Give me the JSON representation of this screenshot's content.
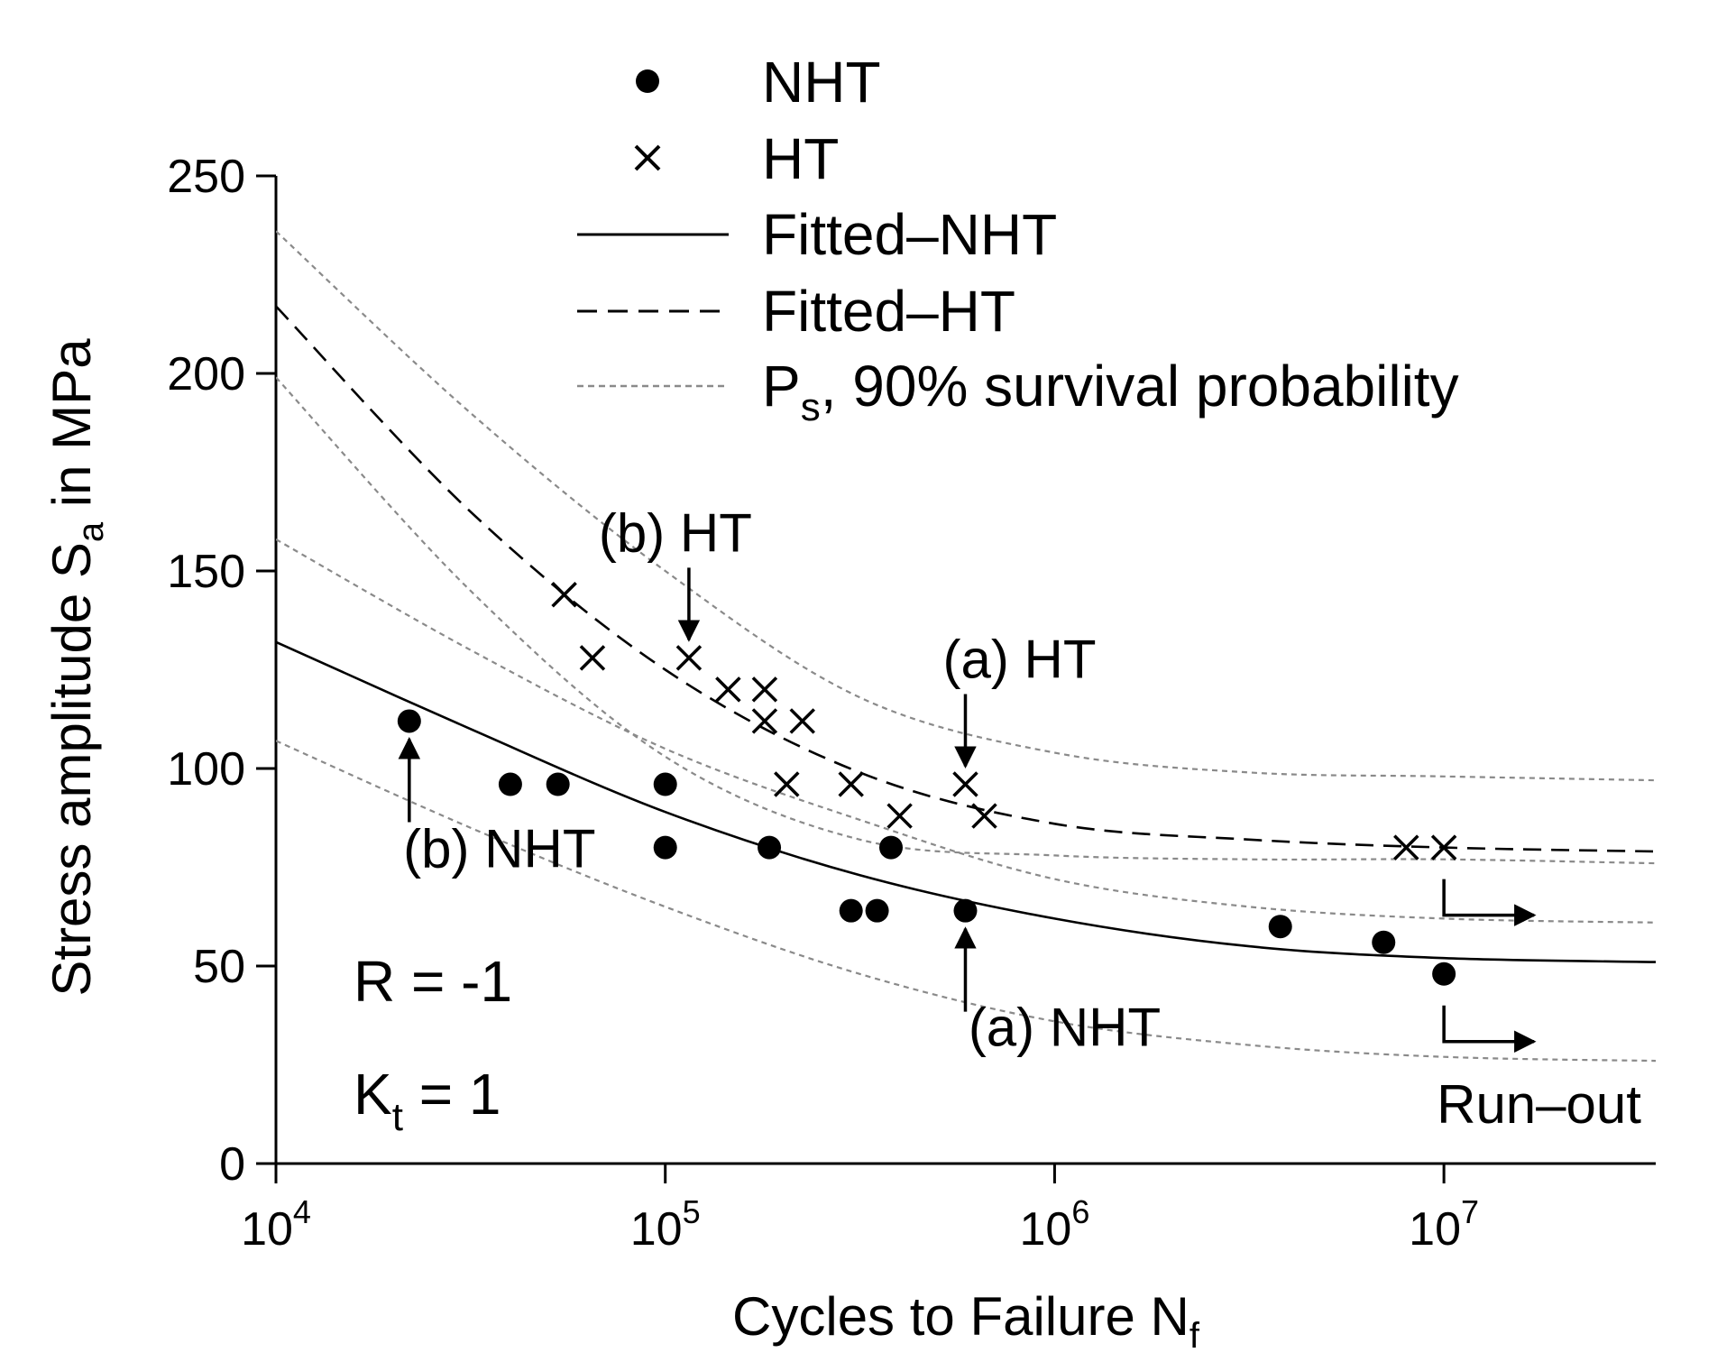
{
  "chart_data": {
    "type": "scatter",
    "title": "",
    "xlabel": "Cycles to Failure N",
    "xlabel_sub": "f",
    "ylabel": "Stress amplitude S",
    "ylabel_sub": "a",
    "ylabel_suffix": " in MPa",
    "xscale": "log",
    "xlim": [
      10000,
      35000000
    ],
    "ylim": [
      0,
      250
    ],
    "grid": false,
    "xticks": [
      {
        "value": 10000,
        "base": "10",
        "exp": "4"
      },
      {
        "value": 100000,
        "base": "10",
        "exp": "5"
      },
      {
        "value": 1000000,
        "base": "10",
        "exp": "6"
      },
      {
        "value": 10000000,
        "base": "10",
        "exp": "7"
      }
    ],
    "yticks": [
      {
        "value": 0,
        "label": "0"
      },
      {
        "value": 50,
        "label": "50"
      },
      {
        "value": 100,
        "label": "100"
      },
      {
        "value": 150,
        "label": "150"
      },
      {
        "value": 200,
        "label": "200"
      },
      {
        "value": 250,
        "label": "250"
      }
    ],
    "legend_position": "top",
    "legend": [
      {
        "key": "nht",
        "label": "NHT",
        "marker": "dot"
      },
      {
        "key": "ht",
        "label": "HT",
        "marker": "cross"
      },
      {
        "key": "fit_nht",
        "label": "Fitted–NHT",
        "marker": "solid-line"
      },
      {
        "key": "fit_ht",
        "label": "Fitted–HT",
        "marker": "dashed-line"
      },
      {
        "key": "ps",
        "label": "P",
        "label_sub": "s",
        "label_suffix": ", 90% survival probability",
        "marker": "dotted-line"
      }
    ],
    "series": [
      {
        "name": "NHT",
        "marker": "dot",
        "points": [
          {
            "x": 22000,
            "y": 112
          },
          {
            "x": 40000,
            "y": 96
          },
          {
            "x": 53000,
            "y": 96
          },
          {
            "x": 100000,
            "y": 96
          },
          {
            "x": 100000,
            "y": 80
          },
          {
            "x": 185000,
            "y": 80
          },
          {
            "x": 300000,
            "y": 64
          },
          {
            "x": 350000,
            "y": 64
          },
          {
            "x": 380000,
            "y": 80
          },
          {
            "x": 590000,
            "y": 64
          },
          {
            "x": 3800000,
            "y": 60
          },
          {
            "x": 7000000,
            "y": 56
          },
          {
            "x": 10000000,
            "y": 48
          }
        ]
      },
      {
        "name": "HT",
        "marker": "cross",
        "points": [
          {
            "x": 55000,
            "y": 144
          },
          {
            "x": 65000,
            "y": 128
          },
          {
            "x": 115000,
            "y": 128
          },
          {
            "x": 145000,
            "y": 120
          },
          {
            "x": 180000,
            "y": 120
          },
          {
            "x": 180000,
            "y": 112
          },
          {
            "x": 225000,
            "y": 112
          },
          {
            "x": 205000,
            "y": 96
          },
          {
            "x": 300000,
            "y": 96
          },
          {
            "x": 400000,
            "y": 88
          },
          {
            "x": 590000,
            "y": 96
          },
          {
            "x": 660000,
            "y": 88
          },
          {
            "x": 8000000,
            "y": 80
          },
          {
            "x": 10000000,
            "y": 80
          }
        ]
      }
    ],
    "fitted_curves": [
      {
        "name": "Fitted–NHT",
        "style": "solid",
        "x": [
          10000,
          31600,
          100000,
          316000,
          1000000,
          3160000,
          10000000,
          35000000
        ],
        "y": [
          132,
          110,
          89,
          73,
          62,
          55,
          52,
          51
        ]
      },
      {
        "name": "Fitted–HT",
        "style": "dashed",
        "x": [
          10000,
          31600,
          100000,
          316000,
          1000000,
          3160000,
          10000000,
          35000000
        ],
        "y": [
          217,
          165,
          125,
          99,
          86,
          82,
          80,
          79
        ]
      }
    ],
    "survival_bands": [
      {
        "name": "NHT upper",
        "x": [
          10000,
          31600,
          100000,
          316000,
          1000000,
          3160000,
          10000000,
          35000000
        ],
        "y": [
          158,
          130,
          105,
          87,
          72,
          65,
          62,
          61
        ]
      },
      {
        "name": "NHT lower",
        "x": [
          10000,
          31600,
          100000,
          316000,
          1000000,
          3160000,
          10000000,
          35000000
        ],
        "y": [
          107,
          85,
          65,
          48,
          36,
          30,
          27,
          26
        ]
      },
      {
        "name": "HT upper",
        "x": [
          10000,
          31600,
          100000,
          316000,
          1000000,
          3160000,
          10000000,
          35000000
        ],
        "y": [
          236,
          190,
          150,
          118,
          104,
          99,
          98,
          97
        ]
      },
      {
        "name": "HT lower",
        "x": [
          10000,
          31600,
          100000,
          316000,
          1000000,
          3160000,
          10000000,
          35000000
        ],
        "y": [
          199,
          145,
          103,
          82,
          78,
          77,
          77,
          76
        ]
      }
    ],
    "annotations": [
      {
        "key": "b_ht",
        "text": "(b) HT",
        "point": {
          "x": 115000,
          "y": 128
        },
        "arrow": "down"
      },
      {
        "key": "a_ht",
        "text": "(a) HT",
        "point": {
          "x": 590000,
          "y": 96
        },
        "arrow": "down"
      },
      {
        "key": "b_nht",
        "text": "(b) NHT",
        "point": {
          "x": 22000,
          "y": 112
        },
        "arrow": "up"
      },
      {
        "key": "a_nht",
        "text": "(a) NHT",
        "point": {
          "x": 590000,
          "y": 64
        },
        "arrow": "up"
      }
    ],
    "runout": {
      "label": "Run–out",
      "at_points": [
        {
          "x": 10000000,
          "y": 80
        },
        {
          "x": 10000000,
          "y": 48
        }
      ]
    },
    "parameters": [
      {
        "key": "R",
        "symbol": "R",
        "value": " = -1"
      },
      {
        "key": "Kt",
        "symbol": "K",
        "sub": "t",
        "value": " =  1"
      }
    ]
  }
}
